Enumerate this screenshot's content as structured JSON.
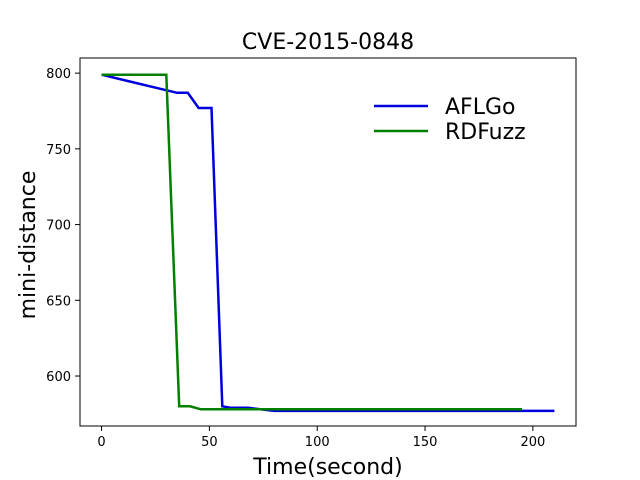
{
  "chart_data": {
    "type": "line",
    "title": "CVE-2015-0848",
    "xlabel": "Time(second)",
    "ylabel": "mini-distance",
    "xlim": [
      -10,
      220
    ],
    "ylim": [
      567,
      810
    ],
    "xticks": [
      0,
      50,
      100,
      150,
      200
    ],
    "yticks": [
      600,
      650,
      700,
      750,
      800
    ],
    "xtick_labels": [
      "0",
      "50",
      "100",
      "150",
      "200"
    ],
    "ytick_labels": [
      "600",
      "650",
      "700",
      "750",
      "800"
    ],
    "grid": false,
    "legend_position": "top-right",
    "series": [
      {
        "name": "AFLGo",
        "color": "#0000dd",
        "points": [
          [
            0,
            799
          ],
          [
            35,
            787
          ],
          [
            40,
            787
          ],
          [
            45,
            777
          ],
          [
            51,
            777
          ],
          [
            56,
            580
          ],
          [
            60,
            579
          ],
          [
            68,
            579
          ],
          [
            80,
            577
          ],
          [
            210,
            577
          ]
        ]
      },
      {
        "name": "RDFuzz",
        "color": "#008000",
        "points": [
          [
            0,
            799
          ],
          [
            30,
            799
          ],
          [
            36,
            580
          ],
          [
            41,
            580
          ],
          [
            46,
            578
          ],
          [
            60,
            578
          ],
          [
            195,
            578
          ]
        ]
      }
    ]
  }
}
